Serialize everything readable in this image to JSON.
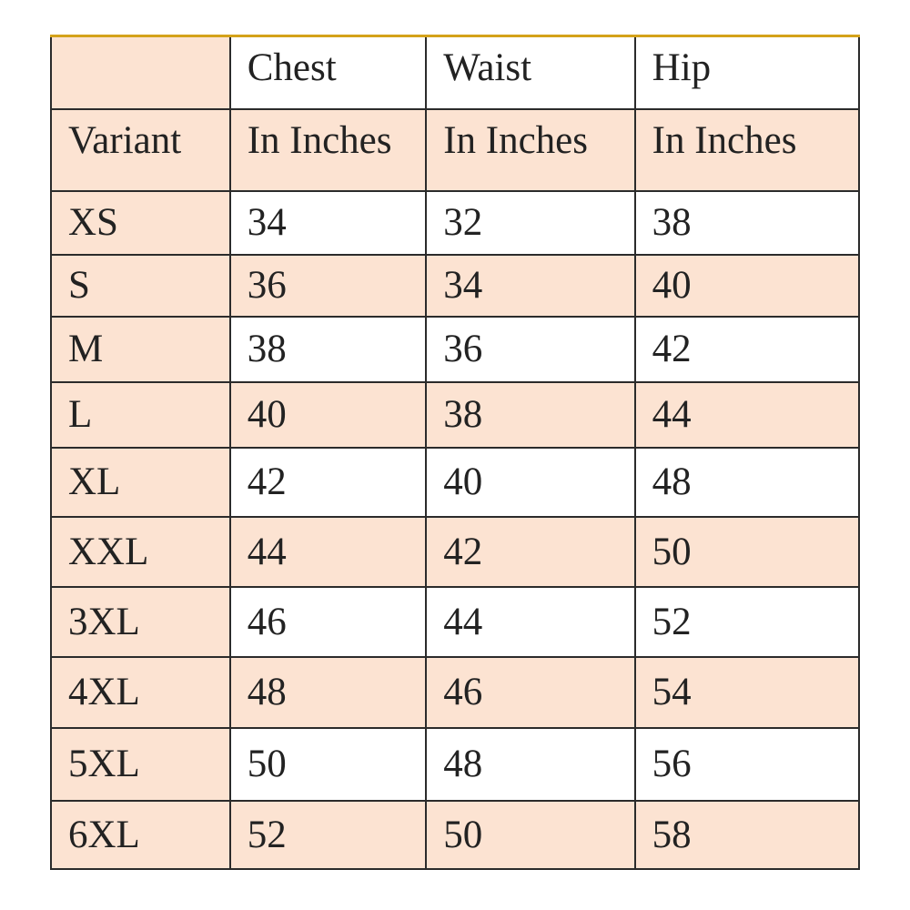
{
  "header": {
    "row1": [
      "",
      "Chest",
      "Waist",
      "Hip"
    ],
    "row2": [
      "Variant",
      "In Inches",
      "In Inches",
      "In Inches"
    ]
  },
  "rows": [
    [
      "XS",
      "34",
      "32",
      "38"
    ],
    [
      "S",
      "36",
      "34",
      "40"
    ],
    [
      "M",
      "38",
      "36",
      "42"
    ],
    [
      "L",
      "40",
      "38",
      "44"
    ],
    [
      "XL",
      "42",
      "40",
      "48"
    ],
    [
      "XXL",
      "44",
      "42",
      "50"
    ],
    [
      "3XL",
      "46",
      "44",
      "52"
    ],
    [
      "4XL",
      "48",
      "46",
      "54"
    ],
    [
      "5XL",
      "50",
      "48",
      "56"
    ],
    [
      "6XL",
      "52",
      "50",
      "58"
    ]
  ],
  "colors": {
    "peach": "#fce3d2",
    "white": "#ffffff",
    "top_border": "#d4a21a",
    "grid": "#2b2b2b"
  }
}
